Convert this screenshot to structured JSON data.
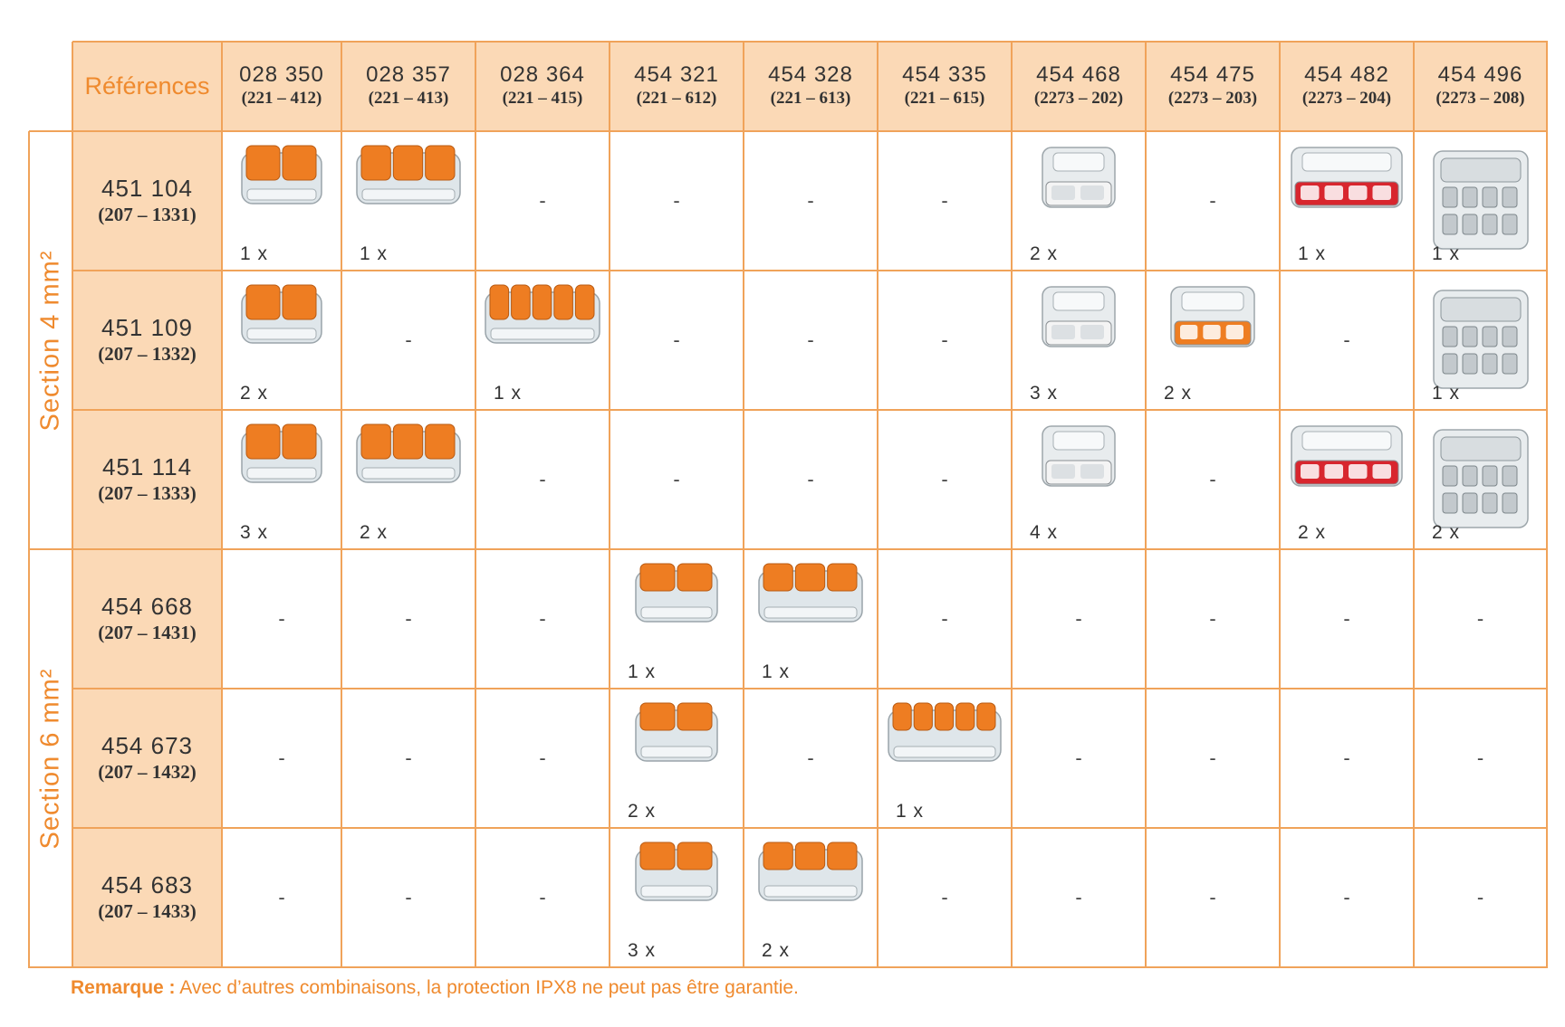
{
  "table": {
    "corner_label": "Références",
    "columns": [
      {
        "ref": "028 350",
        "article": "(221 – 412)"
      },
      {
        "ref": "028 357",
        "article": "(221 – 413)"
      },
      {
        "ref": "028 364",
        "article": "(221 – 415)"
      },
      {
        "ref": "454 321",
        "article": "(221 – 612)"
      },
      {
        "ref": "454 328",
        "article": "(221 – 613)"
      },
      {
        "ref": "454 335",
        "article": "(221 – 615)"
      },
      {
        "ref": "454 468",
        "article": "(2273 – 202)"
      },
      {
        "ref": "454 475",
        "article": "(2273 – 203)"
      },
      {
        "ref": "454 482",
        "article": "(2273 – 204)"
      },
      {
        "ref": "454 496",
        "article": "(2273 – 208)"
      }
    ],
    "sections": [
      {
        "label": "Section 4 mm²",
        "rows": [
          0,
          1,
          2
        ]
      },
      {
        "label": "Section 6 mm²",
        "rows": [
          3,
          4,
          5
        ]
      }
    ],
    "rows": [
      {
        "ref": "451 104",
        "article": "(207 – 1331)",
        "cells": [
          {
            "qty": "1 x",
            "icon": "lever-connector-2-orange"
          },
          {
            "qty": "1 x",
            "icon": "lever-connector-3-orange"
          },
          {
            "text": "-"
          },
          {
            "text": "-"
          },
          {
            "text": "-"
          },
          {
            "text": "-"
          },
          {
            "qty": "2 x",
            "icon": "push-wire-connector-2-white"
          },
          {
            "text": "-"
          },
          {
            "qty": "1 x",
            "icon": "push-wire-connector-4-red"
          },
          {
            "qty": "1 x",
            "icon": "push-wire-connector-8-grey"
          }
        ]
      },
      {
        "ref": "451 109",
        "article": "(207 – 1332)",
        "cells": [
          {
            "qty": "2 x",
            "icon": "lever-connector-2-orange"
          },
          {
            "text": "-"
          },
          {
            "qty": "1 x",
            "icon": "lever-connector-5-orange"
          },
          {
            "text": "-"
          },
          {
            "text": "-"
          },
          {
            "text": "-"
          },
          {
            "qty": "3 x",
            "icon": "push-wire-connector-2-white"
          },
          {
            "qty": "2 x",
            "icon": "push-wire-connector-3-orange"
          },
          {
            "text": "-"
          },
          {
            "qty": "1 x",
            "icon": "push-wire-connector-8-grey"
          }
        ]
      },
      {
        "ref": "451 114",
        "article": "(207 – 1333)",
        "cells": [
          {
            "qty": "3 x",
            "icon": "lever-connector-2-orange"
          },
          {
            "qty": "2 x",
            "icon": "lever-connector-3-orange"
          },
          {
            "text": "-"
          },
          {
            "text": "-"
          },
          {
            "text": "-"
          },
          {
            "text": "-"
          },
          {
            "qty": "4 x",
            "icon": "push-wire-connector-2-white"
          },
          {
            "text": "-"
          },
          {
            "qty": "2 x",
            "icon": "push-wire-connector-4-red"
          },
          {
            "qty": "2 x",
            "icon": "push-wire-connector-8-grey"
          }
        ]
      },
      {
        "ref": "454 668",
        "article": "(207 – 1431)",
        "cells": [
          {
            "text": "-"
          },
          {
            "text": "-"
          },
          {
            "text": "-"
          },
          {
            "qty": "1 x",
            "icon": "compact-connector-2-orange"
          },
          {
            "qty": "1 x",
            "icon": "compact-connector-3-orange"
          },
          {
            "text": "-"
          },
          {
            "text": "-"
          },
          {
            "text": "-"
          },
          {
            "text": "-"
          },
          {
            "text": "-"
          }
        ]
      },
      {
        "ref": "454 673",
        "article": "(207 – 1432)",
        "cells": [
          {
            "text": "-"
          },
          {
            "text": "-"
          },
          {
            "text": "-"
          },
          {
            "qty": "2 x",
            "icon": "compact-connector-2-orange"
          },
          {
            "text": "-"
          },
          {
            "qty": "1 x",
            "icon": "compact-connector-5-orange"
          },
          {
            "text": "-"
          },
          {
            "text": "-"
          },
          {
            "text": "-"
          },
          {
            "text": "-"
          }
        ]
      },
      {
        "ref": "454 683",
        "article": "(207 – 1433)",
        "cells": [
          {
            "text": "-"
          },
          {
            "text": "-"
          },
          {
            "text": "-"
          },
          {
            "qty": "3 x",
            "icon": "compact-connector-2-orange"
          },
          {
            "qty": "2 x",
            "icon": "compact-connector-3-orange"
          },
          {
            "text": "-"
          },
          {
            "text": "-"
          },
          {
            "text": "-"
          },
          {
            "text": "-"
          },
          {
            "text": "-"
          }
        ]
      }
    ]
  },
  "remark": {
    "label": "Remarque :",
    "text": " Avec d’autres combinaisons, la protection IPX8 ne peut pas être garantie."
  },
  "colors": {
    "accent": "#ef8a2e",
    "grid": "#f0a35a",
    "header_fill": "#fbd9b6",
    "connector_orange": "#ee7d22",
    "connector_red": "#d8262e"
  }
}
